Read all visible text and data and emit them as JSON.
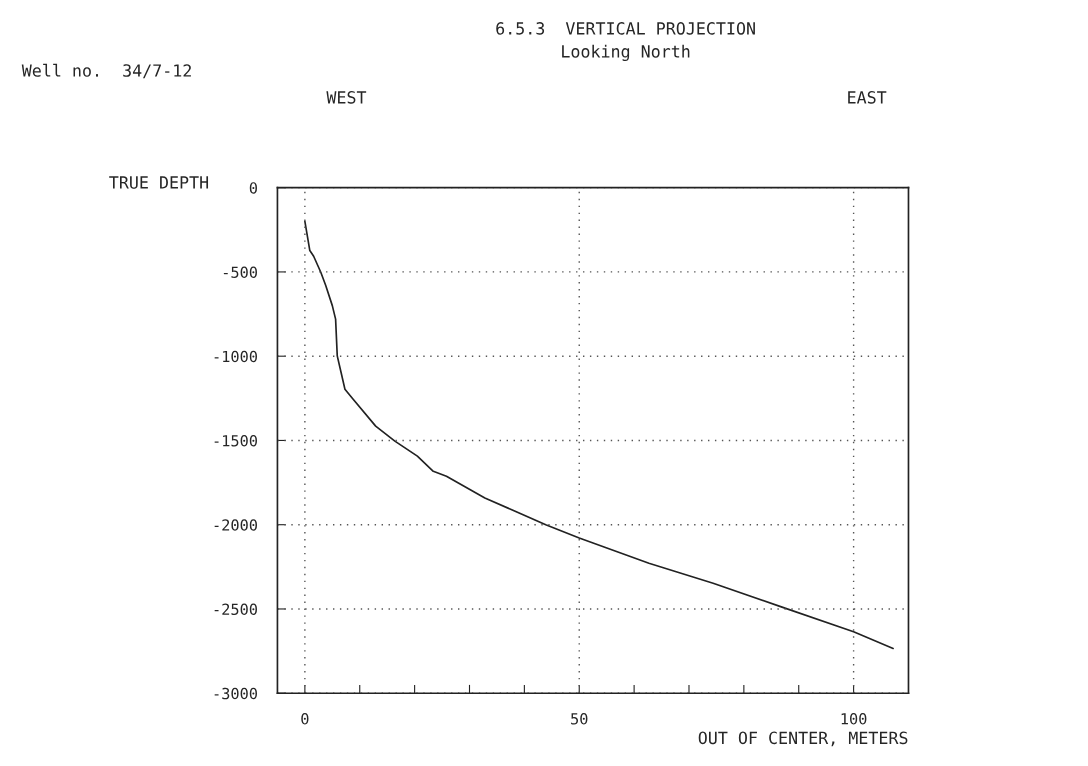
{
  "chart_data": {
    "type": "line",
    "title": "6.5.3  VERTICAL PROJECTION",
    "subtitle": "Looking North",
    "xlabel": "OUT OF CENTER, METERS",
    "ylabel": "TRUE DEPTH",
    "annotations": [
      "Well no.  34/7-12",
      "WEST",
      "EAST"
    ],
    "x": [
      0,
      0.9,
      1.6,
      2.9,
      3.8,
      5.0,
      5.6,
      5.9,
      6.6,
      7.3,
      8.8,
      12.9,
      16.4,
      20.5,
      23.4,
      25.8,
      32.8,
      43.9,
      50.0,
      62.7,
      74.4,
      86.7,
      100,
      107.2
    ],
    "series": [
      {
        "color": "#222222",
        "values": [
          -200,
          -373,
          -407,
          -502,
          -581,
          -700,
          -780,
          -998,
          -1097,
          -1196,
          -1256,
          -1415,
          -1504,
          -1593,
          -1683,
          -1712,
          -1841,
          -2000,
          -2079,
          -2229,
          -2347,
          -2486,
          -2635,
          -2734
        ]
      }
    ],
    "xlim": [
      -5,
      110
    ],
    "ylim": [
      -3000,
      0
    ],
    "xticks": [
      0,
      {
        "value": 10,
        "label": null
      },
      {
        "value": 20,
        "label": null
      },
      {
        "value": 30,
        "label": null
      },
      {
        "value": 40,
        "label": null
      },
      50,
      {
        "value": 60,
        "label": null
      },
      {
        "value": 70,
        "label": null
      },
      {
        "value": 80,
        "label": null
      },
      {
        "value": 90,
        "label": null
      },
      100
    ],
    "yticks": [
      -3000,
      -2500,
      -2000,
      -1500,
      -1000,
      -500,
      0
    ],
    "grid": true,
    "line_style": "solid",
    "marker": "none"
  }
}
